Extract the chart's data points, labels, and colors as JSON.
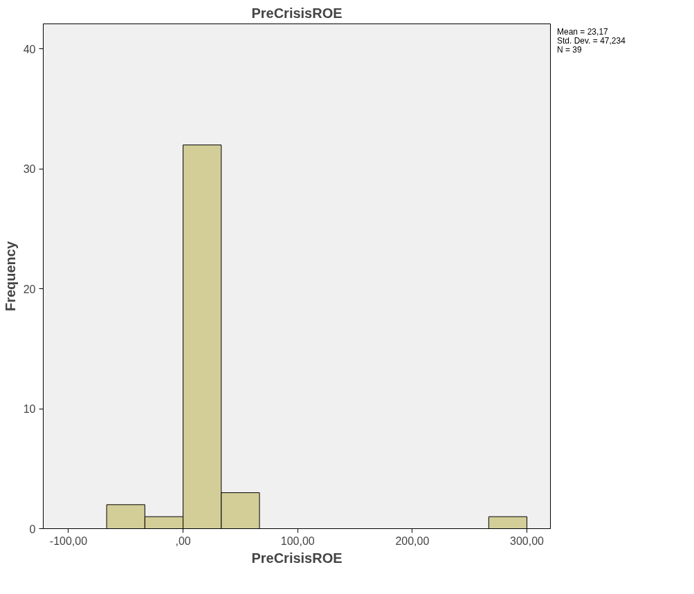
{
  "chart_data": {
    "type": "histogram",
    "title": "PreCrisisROE",
    "xlabel": "PreCrisisROE",
    "ylabel": "Frequency",
    "bins": [
      -66.67,
      -33.33,
      0,
      33.33,
      66.67,
      100,
      133.33,
      166.67,
      200,
      233.33,
      266.67,
      300
    ],
    "values": [
      2,
      1,
      32,
      3,
      0,
      0,
      0,
      0,
      0,
      0,
      1
    ],
    "color": "#d3ce97",
    "xlim": [
      -122,
      320.5
    ],
    "ylim": [
      0,
      42.1
    ],
    "xticks": [
      {
        "value": -100,
        "label": "-100,00"
      },
      {
        "value": 0,
        "label": ",00"
      },
      {
        "value": 100,
        "label": "100,00"
      },
      {
        "value": 200,
        "label": "200,00"
      },
      {
        "value": 300,
        "label": "300,00"
      }
    ],
    "yticks": [
      0,
      10,
      20,
      30,
      40
    ],
    "grid": false,
    "annotations": [
      "Mean = 23,17",
      "Std. Dev. = 47,234",
      "N = 39"
    ]
  }
}
